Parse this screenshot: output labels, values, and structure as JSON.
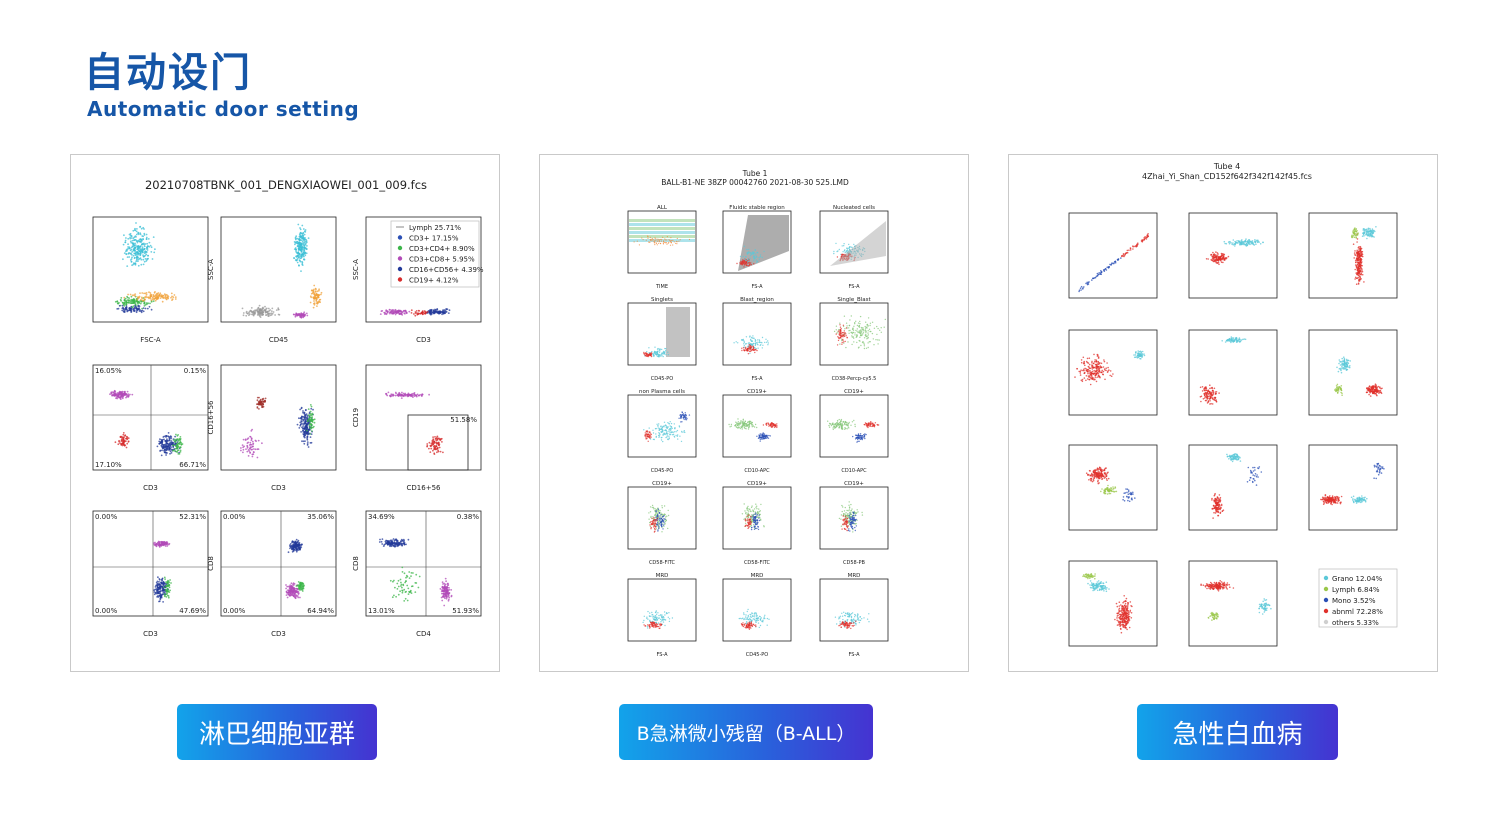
{
  "header": {
    "title": "自动设门",
    "subtitle": "Automatic door setting"
  },
  "panels": [
    {
      "title": "20210708TBNK_001_DENGXIAOWEI_001_009.fcs",
      "legend": [
        "Lymph 25.71%",
        "CD3+ 17.15%",
        "CD3+CD4+ 8.90%",
        "CD3+CD8+ 5.95%",
        "CD16+CD56+ 4.39%",
        "CD19+ 4.12%"
      ],
      "legend_colors": [
        "#888888",
        "#2a4fb5",
        "#3cb54a",
        "#b24bb8",
        "#233a9a",
        "#d62b2b"
      ],
      "xlabels": [
        "FSC-A",
        "CD45",
        "CD3",
        "CD3",
        "CD3",
        "CD16+56",
        "CD3",
        "CD3",
        "CD4"
      ],
      "ylabels": [
        "",
        "SSC-A",
        "SSC-A",
        "",
        "CD16+56",
        "CD19",
        "",
        "CD8",
        "CD8"
      ],
      "quadrants": {
        "q1": [
          "16.05%",
          "0.15%",
          "17.10%",
          "66.71%"
        ],
        "q3": "51.58%",
        "q4": [
          "0.00%",
          "52.31%",
          "0.00%",
          "47.69%"
        ],
        "q5": [
          "0.00%",
          "35.06%",
          "0.00%",
          "64.94%"
        ],
        "q6": [
          "34.69%",
          "0.38%",
          "13.01%",
          "51.93%"
        ]
      }
    },
    {
      "title1": "Tube 1",
      "title2": "BALL-B1-NE 38ZP 00042760 2021-08-30 525.LMD",
      "subtitles": [
        "ALL",
        "Fluidic stable region",
        "Nucleated cells",
        "Singlets",
        "Blast_region",
        "Single_Blast",
        "non Plasma cells",
        "CD19+",
        "CD19+",
        "CD19+",
        "CD19+",
        "CD19+",
        "MRD",
        "MRD",
        "MRD"
      ],
      "xlabels": [
        "TIME",
        "FS-A",
        "FS-A",
        "CD45-PO",
        "FS-A",
        "CD38-Percp-cy5.5",
        "CD45-PO",
        "CD10-APC",
        "CD10-APC",
        "CD58-FITC",
        "CD58-FITC",
        "CD58-PB",
        "FS-A",
        "CD45-PO",
        "FS-A"
      ]
    },
    {
      "title1": "Tube 4",
      "title2": "4Zhai_Yi_Shan_CD152f642f342f142f45.fcs",
      "legend": [
        "Grano 12.04%",
        "Lymph 6.84%",
        "Mono 3.52%",
        "abnml 72.28%",
        "others 5.33%"
      ],
      "legend_colors": [
        "#5bc8d8",
        "#9ac74a",
        "#2a4fb5",
        "#e0302b",
        "#cfcfcf"
      ]
    }
  ],
  "buttons": [
    "淋巴细胞亚群",
    "B急淋微小残留（B-ALL）",
    "急性白血病"
  ],
  "colors": {
    "accent": "#1656a7",
    "button_start": "#12a3ea",
    "button_end": "#4533d1"
  }
}
